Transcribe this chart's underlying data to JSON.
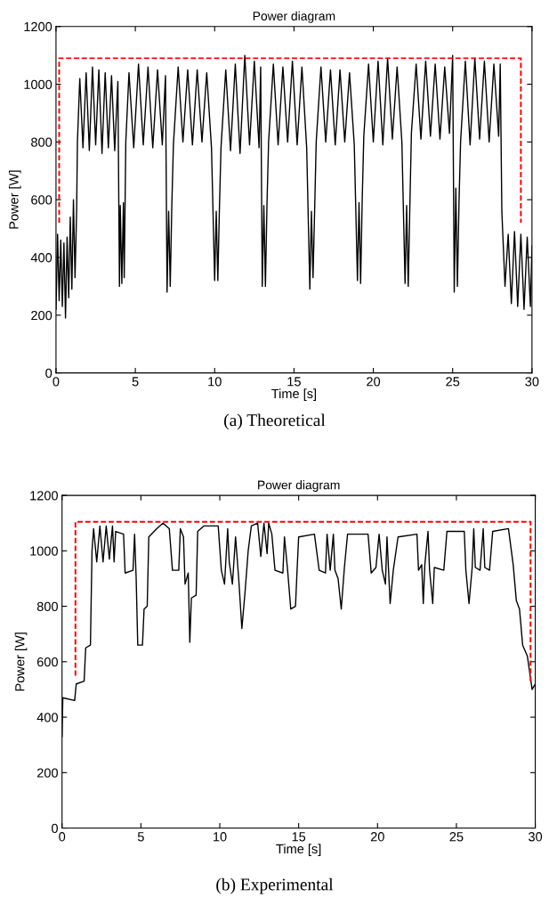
{
  "chart_data": [
    {
      "type": "line",
      "title": "Power diagram",
      "xlabel": "Time [s]",
      "ylabel": "Power [W]",
      "xlim": [
        0,
        30
      ],
      "ylim": [
        0,
        1200
      ],
      "xticks": [
        0,
        5,
        10,
        15,
        20,
        25,
        30
      ],
      "yticks": [
        0,
        200,
        400,
        600,
        800,
        1000,
        1200
      ],
      "annotations": [
        "(a) Theoretical"
      ],
      "series": [
        {
          "color": "#000000",
          "line_style": "solid",
          "x": [
            0,
            0.1,
            0.2,
            0.3,
            0.4,
            0.5,
            0.6,
            0.7,
            0.8,
            0.9,
            1.0,
            1.1,
            1.2,
            1.3,
            1.35,
            1.5,
            1.7,
            1.9,
            2.1,
            2.3,
            2.5,
            2.7,
            2.9,
            3.1,
            3.3,
            3.5,
            3.7,
            3.9,
            4.0,
            4.05,
            4.15,
            4.25,
            4.3,
            4.4,
            4.6,
            4.9,
            5.2,
            5.5,
            5.8,
            6.1,
            6.4,
            6.7,
            6.9,
            7.0,
            7.1,
            7.2,
            7.3,
            7.4,
            7.7,
            8.0,
            8.3,
            8.6,
            8.9,
            9.2,
            9.5,
            9.8,
            10.0,
            10.1,
            10.2,
            10.3,
            10.4,
            10.7,
            11.0,
            11.3,
            11.6,
            11.9,
            12.2,
            12.5,
            12.8,
            12.9,
            13.0,
            13.1,
            13.2,
            13.3,
            13.4,
            13.7,
            14.0,
            14.3,
            14.6,
            14.9,
            15.2,
            15.5,
            15.8,
            16.0,
            16.1,
            16.2,
            16.3,
            16.4,
            16.7,
            17.0,
            17.3,
            17.6,
            17.9,
            18.2,
            18.5,
            18.8,
            19.0,
            19.1,
            19.2,
            19.3,
            19.4,
            19.7,
            20.0,
            20.3,
            20.6,
            20.9,
            21.2,
            21.5,
            21.8,
            22.0,
            22.1,
            22.2,
            22.3,
            22.4,
            22.7,
            23.0,
            23.3,
            23.6,
            23.9,
            24.2,
            24.5,
            24.8,
            25.0,
            25.1,
            25.2,
            25.3,
            25.4,
            25.5,
            25.8,
            26.1,
            26.4,
            26.7,
            27.0,
            27.3,
            27.6,
            27.9,
            28.0,
            28.1,
            28.3,
            28.5,
            28.7,
            28.9,
            29.1,
            29.3,
            29.5,
            29.7,
            29.9,
            30
          ],
          "values": [
            220,
            480,
            250,
            460,
            230,
            450,
            190,
            470,
            260,
            540,
            290,
            600,
            330,
            560,
            800,
            1020,
            780,
            1040,
            770,
            1060,
            790,
            1050,
            760,
            1040,
            780,
            1030,
            770,
            1010,
            300,
            580,
            310,
            590,
            330,
            800,
            1040,
            780,
            1070,
            790,
            1060,
            780,
            1050,
            790,
            1030,
            280,
            560,
            300,
            580,
            790,
            1060,
            800,
            1050,
            790,
            1050,
            800,
            1040,
            780,
            320,
            560,
            320,
            570,
            780,
            1050,
            770,
            1070,
            760,
            1100,
            790,
            1080,
            780,
            1060,
            300,
            580,
            300,
            590,
            800,
            1070,
            790,
            1060,
            800,
            1080,
            790,
            1060,
            780,
            290,
            560,
            330,
            560,
            800,
            1060,
            800,
            1050,
            790,
            1050,
            800,
            1040,
            790,
            320,
            590,
            310,
            600,
            820,
            1070,
            800,
            1080,
            790,
            1090,
            810,
            1060,
            800,
            310,
            580,
            300,
            570,
            830,
            1070,
            810,
            1080,
            820,
            1070,
            810,
            1060,
            830,
            1100,
            280,
            640,
            300,
            590,
            800,
            1080,
            790,
            1090,
            810,
            1080,
            800,
            1070,
            820,
            1070,
            560,
            300,
            480,
            240,
            490,
            230,
            480,
            220,
            470,
            230,
            440
          ]
        },
        {
          "color": "#ff0000",
          "line_style": "dashed",
          "x": [
            0.2,
            0.2,
            29.3,
            29.3
          ],
          "values": [
            520,
            1090,
            1090,
            520
          ]
        }
      ]
    },
    {
      "type": "line",
      "title": "Power diagram",
      "xlabel": "Time [s]",
      "ylabel": "Power [W]",
      "xlim": [
        0,
        30
      ],
      "ylim": [
        0,
        1200
      ],
      "xticks": [
        0,
        5,
        10,
        15,
        20,
        25,
        30
      ],
      "yticks": [
        0,
        200,
        400,
        600,
        800,
        1000,
        1200
      ],
      "annotations": [
        "(b) Experimental"
      ],
      "series": [
        {
          "color": "#000000",
          "line_style": "solid",
          "x": [
            0,
            0.05,
            0.8,
            0.9,
            1.4,
            1.5,
            1.8,
            1.9,
            2.0,
            2.2,
            2.4,
            2.6,
            2.8,
            3.0,
            3.2,
            3.3,
            3.4,
            3.9,
            4.0,
            4.5,
            4.6,
            4.7,
            4.8,
            5.1,
            5.2,
            5.4,
            5.5,
            6.0,
            6.4,
            6.8,
            7.0,
            7.4,
            7.5,
            7.7,
            7.8,
            8.0,
            8.1,
            8.2,
            8.5,
            8.6,
            9.0,
            9.9,
            10.1,
            10.3,
            10.5,
            10.6,
            10.8,
            11.0,
            11.2,
            11.4,
            11.6,
            11.8,
            12.0,
            12.4,
            12.6,
            12.8,
            13.0,
            13.1,
            13.3,
            13.5,
            14.0,
            14.1,
            14.3,
            14.5,
            14.8,
            14.9,
            15.0,
            16.0,
            16.3,
            16.7,
            16.8,
            17.0,
            17.2,
            17.3,
            17.5,
            17.7,
            17.9,
            18.1,
            19.4,
            19.6,
            19.9,
            20.1,
            20.3,
            20.5,
            20.6,
            20.8,
            21.0,
            21.3,
            22.5,
            22.6,
            22.8,
            22.9,
            23.0,
            23.2,
            23.3,
            23.5,
            23.6,
            24.2,
            24.4,
            25.5,
            25.6,
            25.8,
            26.0,
            26.1,
            26.2,
            26.5,
            26.7,
            26.8,
            27.1,
            27.3,
            28.3,
            28.6,
            28.8,
            29.0,
            29.2,
            29.5,
            29.7,
            29.8,
            30
          ],
          "values": [
            330,
            470,
            460,
            520,
            530,
            650,
            660,
            1000,
            1080,
            960,
            1090,
            960,
            1090,
            970,
            1090,
            960,
            1070,
            1060,
            920,
            930,
            1060,
            900,
            660,
            660,
            790,
            800,
            1050,
            1080,
            1100,
            1080,
            930,
            930,
            1080,
            1050,
            880,
            920,
            670,
            830,
            840,
            1070,
            1090,
            1090,
            930,
            880,
            1080,
            960,
            880,
            1050,
            900,
            720,
            850,
            1000,
            1090,
            1100,
            980,
            1100,
            990,
            1100,
            1060,
            930,
            920,
            1050,
            930,
            790,
            800,
            930,
            1050,
            1060,
            930,
            920,
            1060,
            930,
            1060,
            930,
            900,
            790,
            940,
            1060,
            1060,
            920,
            940,
            1060,
            930,
            880,
            1050,
            810,
            930,
            1050,
            1060,
            930,
            950,
            810,
            950,
            1070,
            930,
            810,
            940,
            930,
            1070,
            1070,
            930,
            810,
            940,
            1080,
            940,
            930,
            1080,
            940,
            930,
            1070,
            1080,
            950,
            820,
            790,
            660,
            620,
            540,
            500,
            520
          ]
        },
        {
          "color": "#ff0000",
          "line_style": "dashed",
          "x": [
            0.85,
            0.85,
            29.7,
            29.7
          ],
          "values": [
            550,
            1105,
            1105,
            520
          ]
        }
      ]
    }
  ]
}
